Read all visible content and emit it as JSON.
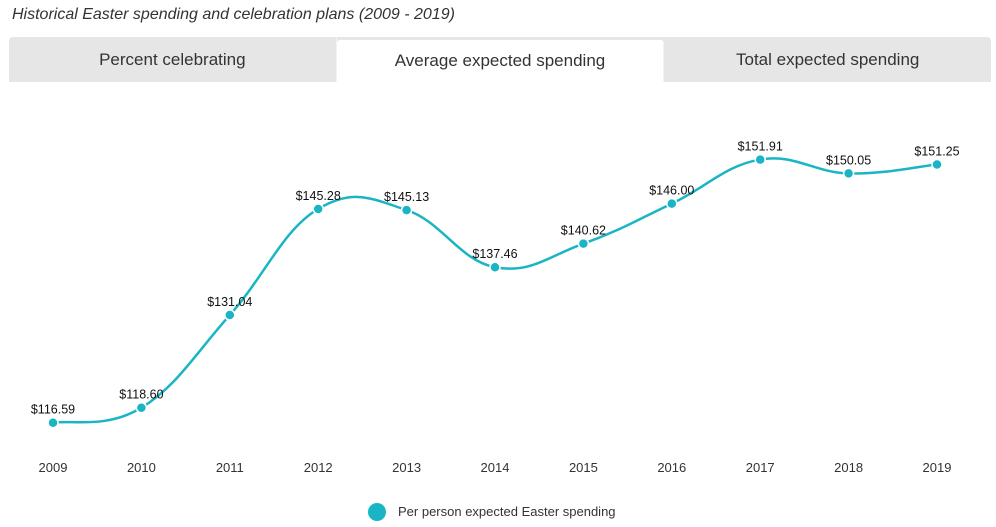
{
  "title": "Historical Easter spending and celebration plans (2009 - 2019)",
  "tabs": [
    {
      "label": "Percent celebrating",
      "active": false
    },
    {
      "label": "Average expected spending",
      "active": true
    },
    {
      "label": "Total expected spending",
      "active": false
    }
  ],
  "colors": {
    "series": "#1ab5c4"
  },
  "chart_data": {
    "type": "line",
    "title": "",
    "xlabel": "",
    "ylabel": "",
    "ylim": [
      114,
      154
    ],
    "grid": false,
    "legend_position": "bottom-center",
    "categories": [
      "2009",
      "2010",
      "2011",
      "2012",
      "2013",
      "2014",
      "2015",
      "2016",
      "2017",
      "2018",
      "2019"
    ],
    "series": [
      {
        "name": "Per person expected Easter spending",
        "values": [
          116.59,
          118.6,
          131.04,
          145.28,
          145.13,
          137.46,
          140.62,
          146.0,
          151.91,
          150.05,
          151.25
        ],
        "labels": [
          "$116.59",
          "$118.60",
          "$131.04",
          "$145.28",
          "$145.13",
          "$137.46",
          "$140.62",
          "$146.00",
          "$151.91",
          "$150.05",
          "$151.25"
        ]
      }
    ]
  }
}
